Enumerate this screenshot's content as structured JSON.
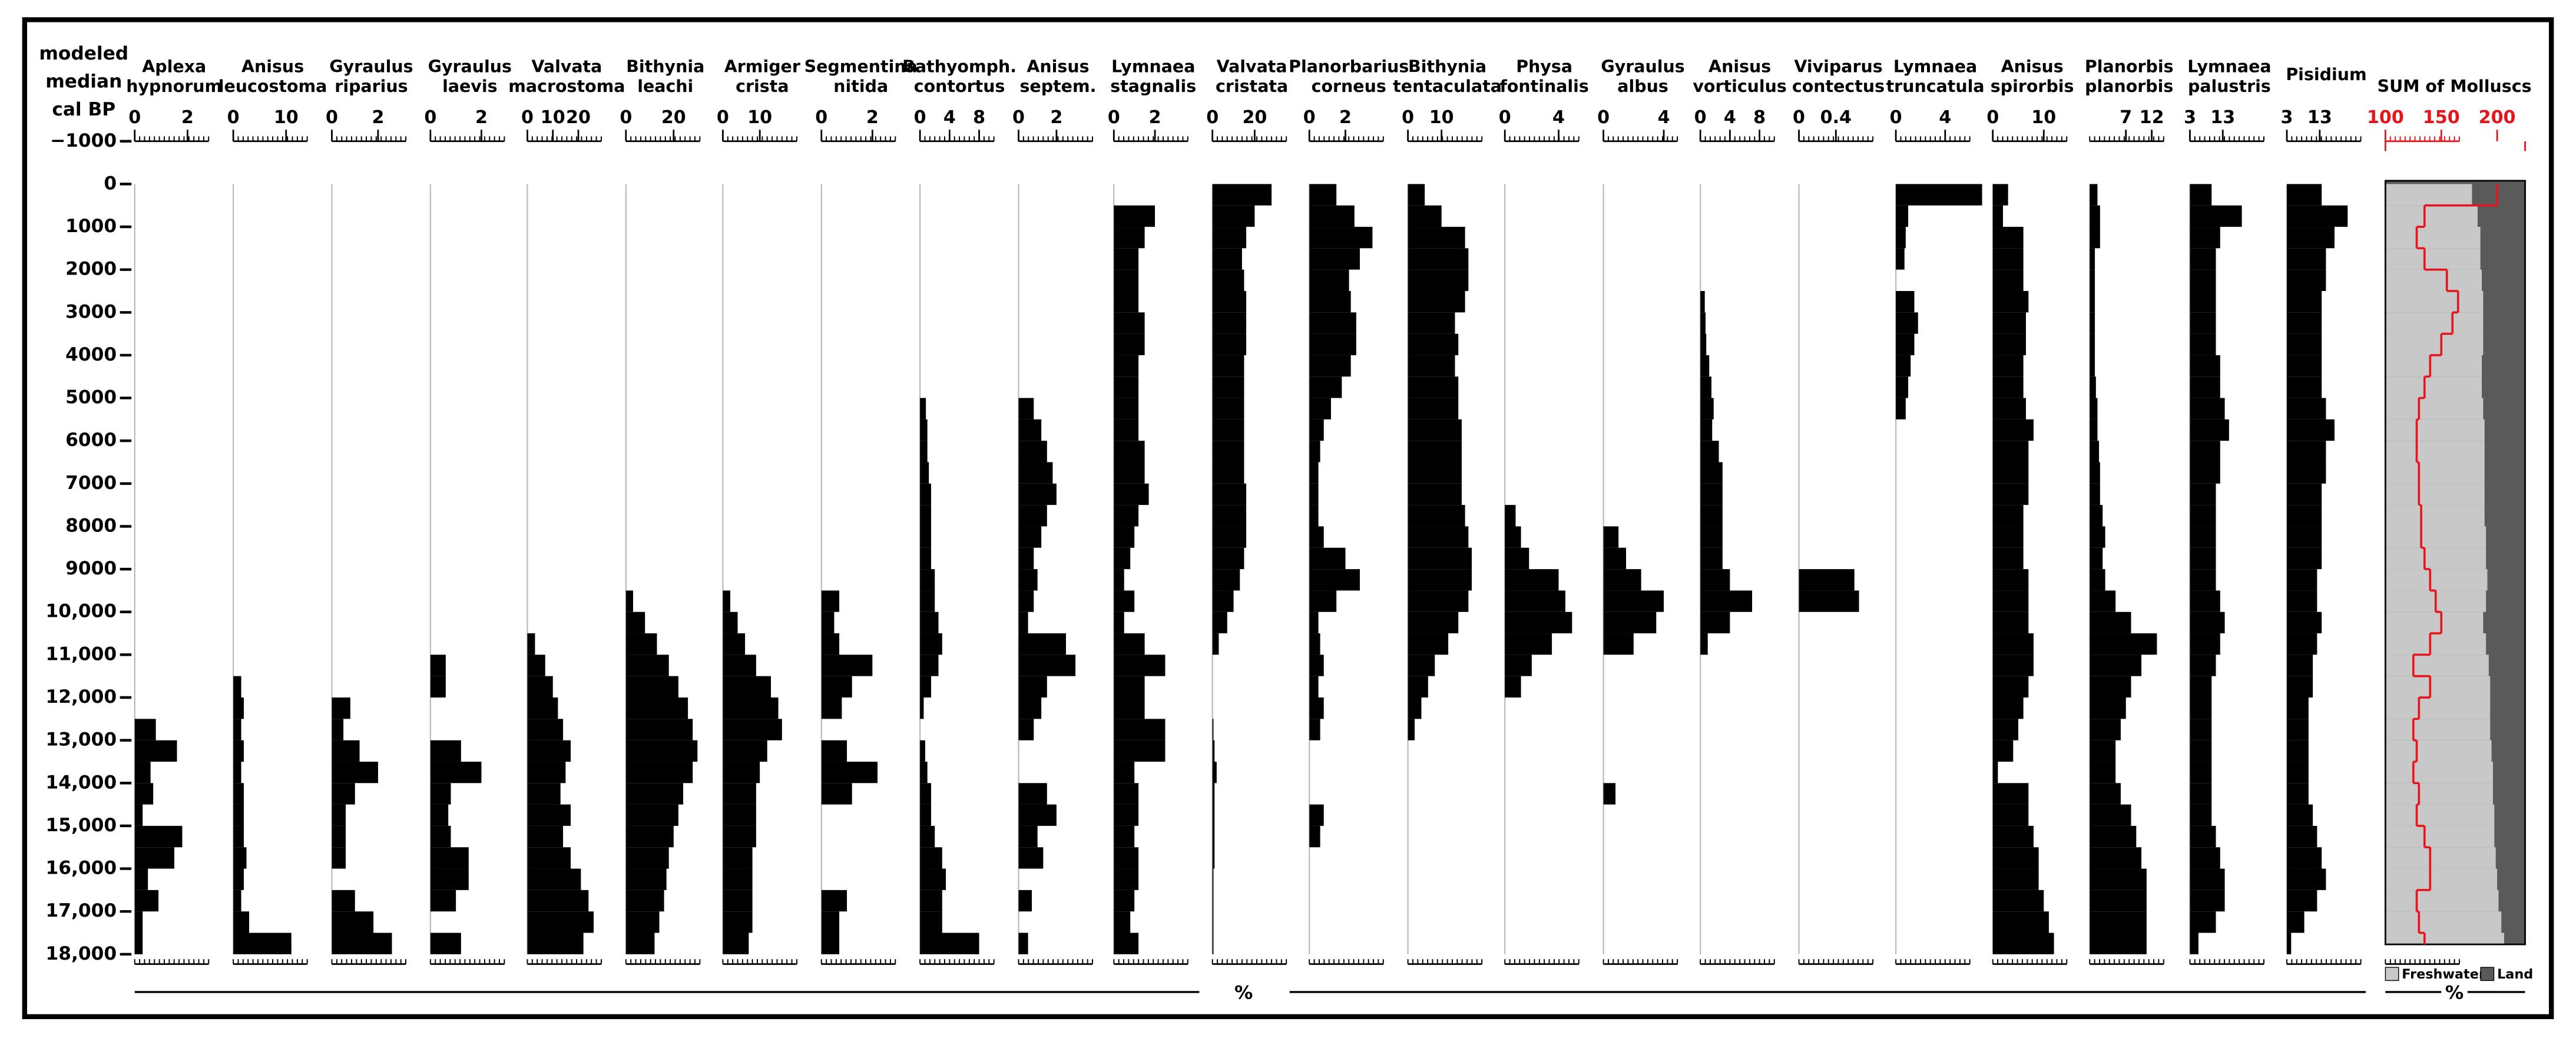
{
  "chart_data": {
    "type": "stratigraphic",
    "y_label": [
      "modeled",
      "median",
      "cal BP"
    ],
    "ylim": [
      -1000,
      18000
    ],
    "yticks": [
      {
        "value": -1000,
        "label": "−1000"
      },
      0,
      1000,
      2000,
      3000,
      4000,
      5000,
      6000,
      7000,
      8000,
      9000,
      {
        "value": 10000,
        "label": "10,000"
      },
      {
        "value": 11000,
        "label": "11,000"
      },
      {
        "value": 12000,
        "label": "12,000"
      },
      {
        "value": 13000,
        "label": "13,000"
      },
      {
        "value": 14000,
        "label": "14,000"
      },
      {
        "value": 15000,
        "label": "15,000"
      },
      {
        "value": 16000,
        "label": "16,000"
      },
      {
        "value": 17000,
        "label": "17,000"
      },
      {
        "value": 18000,
        "label": "18,000"
      }
    ],
    "age_bins": [
      0,
      500,
      1000,
      1500,
      2000,
      2500,
      3000,
      3500,
      4000,
      4500,
      5000,
      5500,
      6000,
      6500,
      7000,
      7500,
      8000,
      8500,
      9000,
      9500,
      10000,
      10500,
      11000,
      11500,
      12000,
      12500,
      13000,
      13500,
      14000,
      14500,
      15000,
      15500,
      16000,
      16500,
      17000,
      17500,
      18000
    ],
    "bar_color": "#000000",
    "x_label": "%",
    "taxa": [
      {
        "name": [
          "Aplexa",
          "hypnorum"
        ],
        "xlim": [
          0,
          2.8
        ],
        "xticks": [
          0,
          2
        ],
        "values": [
          0,
          0,
          0,
          0,
          0,
          0,
          0,
          0,
          0,
          0,
          0,
          0,
          0,
          0,
          0,
          0,
          0,
          0,
          0,
          0,
          0,
          0,
          0,
          0,
          0,
          0.8,
          1.6,
          0.6,
          0.7,
          0.3,
          1.8,
          1.5,
          0.5,
          0.9,
          0.3,
          0.3
        ]
      },
      {
        "name": [
          "Anisus",
          "leucostoma"
        ],
        "xlim": [
          0,
          14
        ],
        "xticks": [
          0,
          10
        ],
        "values": [
          0,
          0,
          0,
          0,
          0,
          0,
          0,
          0,
          0,
          0,
          0,
          0,
          0,
          0,
          0,
          0,
          0,
          0,
          0,
          0,
          0,
          0,
          0,
          1.5,
          2,
          1.5,
          2,
          1.5,
          2,
          2,
          2,
          2.5,
          2,
          1.5,
          3,
          11
        ]
      },
      {
        "name": [
          "Gyraulus",
          "riparius"
        ],
        "xlim": [
          0,
          3.2
        ],
        "xticks": [
          0,
          2
        ],
        "values": [
          0,
          0,
          0,
          0,
          0,
          0,
          0,
          0,
          0,
          0,
          0,
          0,
          0,
          0,
          0,
          0,
          0,
          0,
          0,
          0,
          0,
          0,
          0,
          0,
          0.8,
          0.5,
          1.2,
          2,
          1,
          0.6,
          0.6,
          0.6,
          0,
          1,
          1.8,
          2.6
        ]
      },
      {
        "name": [
          "Gyraulus",
          "laevis"
        ],
        "xlim": [
          0,
          2.9
        ],
        "xticks": [
          0,
          2
        ],
        "values": [
          0,
          0,
          0,
          0,
          0,
          0,
          0,
          0,
          0,
          0,
          0,
          0,
          0,
          0,
          0,
          0,
          0,
          0,
          0,
          0,
          0,
          0,
          0.6,
          0.6,
          0,
          0,
          1.2,
          2,
          0.8,
          0.7,
          0.8,
          1.5,
          1.5,
          1,
          0,
          1.2
        ]
      },
      {
        "name": [
          "Valvata",
          "macrostoma"
        ],
        "xlim": [
          0,
          29
        ],
        "xticks": [
          0,
          10,
          20
        ],
        "values": [
          0,
          0,
          0,
          0,
          0,
          0,
          0,
          0,
          0,
          0,
          0,
          0,
          0,
          0,
          0,
          0,
          0,
          0,
          0,
          0,
          0,
          3,
          7,
          10,
          12,
          14,
          17,
          15,
          13,
          17,
          14,
          17,
          21,
          24,
          26,
          22
        ]
      },
      {
        "name": [
          "Bithynia",
          "leachi"
        ],
        "xlim": [
          0,
          31
        ],
        "xticks": [
          0,
          20
        ],
        "values": [
          0,
          0,
          0,
          0,
          0,
          0,
          0,
          0,
          0,
          0,
          0,
          0,
          0,
          0,
          0,
          0,
          0,
          0,
          0,
          3,
          8,
          13,
          18,
          22,
          26,
          28,
          30,
          28,
          24,
          22,
          20,
          18,
          17,
          16,
          14,
          12
        ]
      },
      {
        "name": [
          "Armiger",
          "crista"
        ],
        "xlim": [
          0,
          20
        ],
        "xticks": [
          0,
          10
        ],
        "values": [
          0,
          0,
          0,
          0,
          0,
          0,
          0,
          0,
          0,
          0,
          0,
          0,
          0,
          0,
          0,
          0,
          0,
          0,
          0,
          2,
          4,
          6,
          9,
          13,
          15,
          16,
          12,
          10,
          9,
          9,
          9,
          8,
          8,
          8,
          8,
          7
        ]
      },
      {
        "name": [
          "Segmentina",
          "nitida"
        ],
        "xlim": [
          0,
          2.9
        ],
        "xticks": [
          0,
          2
        ],
        "values": [
          0,
          0,
          0,
          0,
          0,
          0,
          0,
          0,
          0,
          0,
          0,
          0,
          0,
          0,
          0,
          0,
          0,
          0,
          0,
          0.7,
          0.5,
          0.7,
          2,
          1.2,
          0.8,
          0,
          1,
          2.2,
          1.2,
          0,
          0,
          0,
          0,
          1,
          0.7,
          0.7
        ]
      },
      {
        "name": [
          "Bathyomph.",
          "contortus"
        ],
        "xlim": [
          0,
          10
        ],
        "xticks": [
          0,
          4,
          8
        ],
        "values": [
          0,
          0,
          0,
          0,
          0,
          0,
          0,
          0,
          0,
          0,
          0.8,
          1,
          1,
          1.2,
          1.5,
          1.5,
          1.5,
          1.5,
          2,
          2,
          2.5,
          3,
          2.5,
          1.5,
          0.5,
          0,
          0.7,
          1,
          1.5,
          1.5,
          2,
          3,
          3.5,
          3,
          3,
          8
        ]
      },
      {
        "name": [
          "Anisus",
          "septem."
        ],
        "xlim": [
          0,
          3.9
        ],
        "xticks": [
          0,
          2
        ],
        "values": [
          0,
          0,
          0,
          0,
          0,
          0,
          0,
          0,
          0,
          0,
          0.8,
          1.2,
          1.5,
          1.8,
          2,
          1.5,
          1.2,
          0.8,
          1,
          0.8,
          0.5,
          2.5,
          3,
          1.5,
          1.2,
          0.8,
          0,
          0,
          1.5,
          2,
          1,
          1.3,
          0,
          0.7,
          0,
          0.5
        ]
      },
      {
        "name": [
          "Lymnaea",
          "stagnalis"
        ],
        "xlim": [
          0,
          3.6
        ],
        "xticks": [
          0,
          2
        ],
        "values": [
          0,
          2,
          1.5,
          1.2,
          1.2,
          1.2,
          1.5,
          1.5,
          1.2,
          1.2,
          1.2,
          1.2,
          1.5,
          1.5,
          1.7,
          1.2,
          1,
          0.8,
          0.5,
          1,
          0.5,
          1.5,
          2.5,
          1.5,
          1.5,
          2.5,
          2.5,
          1,
          1.2,
          1.2,
          1,
          1.2,
          1.2,
          1,
          0.8,
          1.2
        ]
      },
      {
        "name": [
          "Valvata",
          "cristata"
        ],
        "xlim": [
          0,
          35
        ],
        "xticks": [
          0,
          20
        ],
        "values": [
          28,
          20,
          16,
          14,
          15,
          16,
          16,
          16,
          15,
          15,
          15,
          15,
          15,
          15,
          16,
          16,
          16,
          15,
          13,
          10,
          7,
          3,
          0,
          0,
          0,
          0.5,
          1,
          2,
          1,
          1,
          1,
          1,
          0.5,
          0.5,
          0.5,
          0.5
        ]
      },
      {
        "name": [
          "Planorbarius",
          "corneus"
        ],
        "xlim": [
          0,
          4.1
        ],
        "xticks": [
          0,
          2
        ],
        "values": [
          1.5,
          2.5,
          3.5,
          2.8,
          2.2,
          2.3,
          2.6,
          2.6,
          2.3,
          1.8,
          1.2,
          0.8,
          0.6,
          0.5,
          0.5,
          0.5,
          0.8,
          2,
          2.8,
          1.5,
          0.5,
          0.6,
          0.8,
          0.5,
          0.8,
          0.6,
          0,
          0,
          0,
          0.8,
          0.6,
          0,
          0,
          0,
          0,
          0
        ]
      },
      {
        "name": [
          "Bithynia",
          "tentaculata"
        ],
        "xlim": [
          0,
          22
        ],
        "xticks": [
          0,
          10
        ],
        "values": [
          5,
          10,
          17,
          18,
          18,
          17,
          14,
          15,
          14,
          15,
          15,
          16,
          16,
          16,
          16,
          17,
          18,
          19,
          19,
          18,
          15,
          12,
          8,
          6,
          4,
          2,
          0,
          0,
          0,
          0,
          0,
          0,
          0,
          0,
          0,
          0
        ]
      },
      {
        "name": [
          "Physa",
          "fontinalis"
        ],
        "xlim": [
          0,
          5.5
        ],
        "xticks": [
          0,
          4
        ],
        "values": [
          0,
          0,
          0,
          0,
          0,
          0,
          0,
          0,
          0,
          0,
          0,
          0,
          0,
          0,
          0,
          0.8,
          1.2,
          1.8,
          4,
          4.5,
          5,
          3.5,
          2,
          1.2,
          0,
          0,
          0,
          0,
          0,
          0,
          0,
          0,
          0,
          0,
          0,
          0
        ]
      },
      {
        "name": [
          "Gyraulus",
          "albus"
        ],
        "xlim": [
          0,
          4.9
        ],
        "xticks": [
          0,
          4
        ],
        "values": [
          0,
          0,
          0,
          0,
          0,
          0,
          0,
          0,
          0,
          0,
          0,
          0,
          0,
          0,
          0,
          0,
          1,
          1.5,
          2.5,
          4,
          3.5,
          2,
          0,
          0,
          0,
          0,
          0,
          0,
          0.8,
          0,
          0,
          0,
          0,
          0,
          0,
          0
        ]
      },
      {
        "name": [
          "Anisus",
          "vorticulus"
        ],
        "xlim": [
          0,
          10
        ],
        "xticks": [
          0,
          4,
          8
        ],
        "values": [
          0,
          0,
          0,
          0,
          0,
          0.6,
          0.7,
          0.8,
          1.2,
          1.5,
          1.8,
          1.6,
          2.5,
          3,
          3,
          3,
          3,
          3,
          4,
          7,
          4,
          1,
          0,
          0,
          0,
          0,
          0,
          0,
          0,
          0,
          0,
          0,
          0,
          0,
          0,
          0
        ]
      },
      {
        "name": [
          "Viviparus",
          "contectus"
        ],
        "xlim": [
          0,
          0.8
        ],
        "xticks": [
          0,
          0.4
        ],
        "values": [
          0,
          0,
          0,
          0,
          0,
          0,
          0,
          0,
          0,
          0,
          0,
          0,
          0,
          0,
          0,
          0,
          0,
          0,
          0.6,
          0.65,
          0,
          0,
          0,
          0,
          0,
          0,
          0,
          0,
          0,
          0,
          0,
          0,
          0,
          0,
          0,
          0
        ]
      },
      {
        "name": [
          "Lymnaea",
          "truncatula"
        ],
        "xlim": [
          0,
          6
        ],
        "xticks": [
          0,
          4
        ],
        "values": [
          7,
          1,
          0.8,
          0.7,
          0,
          1.5,
          1.8,
          1.5,
          1.2,
          1,
          0.8,
          0,
          0,
          0,
          0,
          0,
          0,
          0,
          0,
          0,
          0,
          0,
          0,
          0,
          0,
          0,
          0,
          0,
          0,
          0,
          0,
          0,
          0,
          0,
          0,
          0
        ]
      },
      {
        "name": [
          "Anisus",
          "spirorbis"
        ],
        "xlim": [
          0,
          14.5
        ],
        "xticks": [
          0,
          10
        ],
        "values": [
          3,
          2,
          6,
          6,
          6,
          7,
          6.5,
          6.5,
          6,
          6,
          6.5,
          8,
          7,
          7,
          7,
          6,
          6,
          6,
          7,
          7,
          7,
          8,
          8,
          7,
          6,
          5,
          4,
          1,
          7,
          7,
          8,
          9,
          9,
          10,
          11,
          12
        ]
      },
      {
        "name": [
          "Planorbis",
          "planorbis"
        ],
        "xlim": [
          0,
          14.3
        ],
        "xticks": [
          7,
          12
        ],
        "values": [
          1.5,
          2,
          2,
          1,
          1,
          1,
          1,
          1,
          1,
          1.2,
          1.5,
          1.5,
          1.8,
          2,
          2,
          2.5,
          3,
          2.5,
          3,
          5,
          8,
          13,
          10,
          8,
          7,
          6,
          5,
          5,
          6,
          8,
          9,
          10,
          11,
          11,
          11,
          11
        ]
      },
      {
        "name": [
          "Lymnaea",
          "palustris"
        ],
        "xlim": [
          3,
          25.5
        ],
        "xticks": [
          3,
          13
        ],
        "values": [
          9.6,
          18.8,
          12.2,
          10.9,
          10.9,
          10.9,
          10.9,
          10.9,
          12.2,
          12.2,
          13.6,
          14.9,
          12.2,
          12.2,
          10.9,
          10.9,
          10.9,
          10.9,
          10.9,
          12.2,
          13.6,
          12.2,
          10.9,
          9.6,
          9.6,
          9.6,
          9.6,
          9.6,
          9.6,
          9.6,
          10.9,
          12.2,
          13.6,
          13.6,
          10.9,
          5.6
        ]
      },
      {
        "name": [
          "Pisidium"
        ],
        "xlim": [
          3,
          25.5
        ],
        "xticks": [
          3,
          13
        ],
        "values": [
          13.6,
          21.5,
          17.5,
          14.9,
          14.9,
          13.6,
          13.6,
          13.6,
          13.6,
          13.6,
          14.9,
          17.5,
          14.9,
          14.9,
          13.6,
          13.6,
          13.6,
          13.6,
          12.2,
          12.2,
          13.6,
          12.2,
          10.9,
          10.9,
          9.6,
          9.6,
          9.6,
          9.6,
          9.6,
          10.9,
          12.2,
          13.6,
          14.9,
          12.2,
          8.3,
          4.3
        ]
      }
    ],
    "sum": {
      "title": "SUM of Molluscs",
      "color": "#e8141c",
      "xlim": [
        100,
        225
      ],
      "xticks": [
        100,
        150,
        200
      ],
      "values": [
        200,
        135,
        128,
        135,
        155,
        165,
        160,
        150,
        140,
        135,
        130,
        128,
        128,
        130,
        130,
        132,
        132,
        135,
        140,
        145,
        150,
        140,
        125,
        140,
        130,
        125,
        128,
        125,
        130,
        128,
        135,
        140,
        140,
        128,
        130,
        135
      ],
      "percent_lim": [
        0,
        100
      ],
      "freshwater_percent": [
        62,
        66,
        68,
        68,
        69,
        70,
        70,
        70,
        69,
        69,
        70,
        71,
        71,
        71,
        71,
        71,
        72,
        72,
        73,
        72,
        70,
        72,
        74,
        75,
        75,
        75,
        76,
        77,
        77,
        78,
        78,
        79,
        80,
        81,
        83,
        85
      ],
      "legend": [
        {
          "name": "Freshwater",
          "color": "#c8c8c8"
        },
        {
          "name": "Land",
          "color": "#5a5a5a"
        }
      ],
      "x_label": "%"
    }
  }
}
